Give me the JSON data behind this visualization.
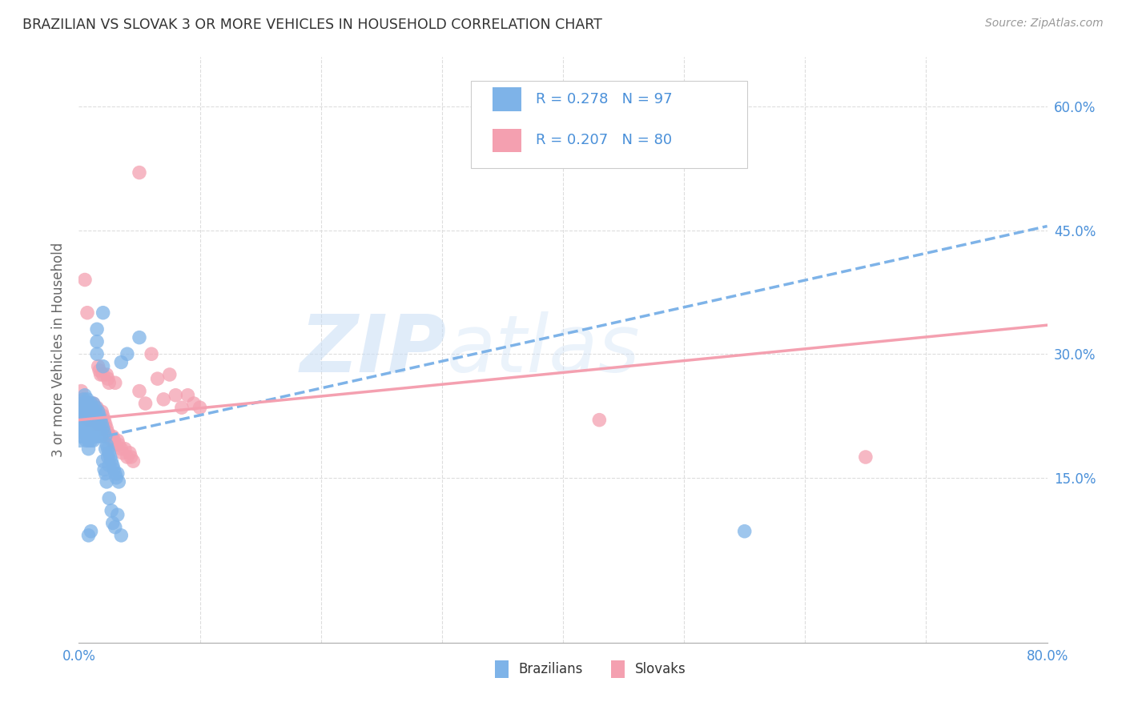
{
  "title": "BRAZILIAN VS SLOVAK 3 OR MORE VEHICLES IN HOUSEHOLD CORRELATION CHART",
  "source": "Source: ZipAtlas.com",
  "ylabel": "3 or more Vehicles in Household",
  "xlim": [
    0.0,
    0.8
  ],
  "ylim": [
    -0.05,
    0.66
  ],
  "xticks": [
    0.0,
    0.1,
    0.2,
    0.3,
    0.4,
    0.5,
    0.6,
    0.7,
    0.8
  ],
  "xticklabels": [
    "0.0%",
    "",
    "",
    "",
    "",
    "",
    "",
    "",
    "80.0%"
  ],
  "ytick_positions": [
    0.15,
    0.3,
    0.45,
    0.6
  ],
  "ytick_labels": [
    "15.0%",
    "30.0%",
    "45.0%",
    "60.0%"
  ],
  "brazilian_color": "#7EB3E8",
  "slovak_color": "#F4A0B0",
  "brazilian_R": 0.278,
  "brazilian_N": 97,
  "slovak_R": 0.207,
  "slovak_N": 80,
  "legend_label_1": "Brazilians",
  "legend_label_2": "Slovaks",
  "watermark_zip": "ZIP",
  "watermark_atlas": "atlas",
  "background_color": "#ffffff",
  "grid_color": "#dddddd",
  "axis_label_color": "#4a90d9",
  "title_color": "#333333",
  "brazilian_line": {
    "x0": 0.0,
    "y0": 0.193,
    "x1": 0.8,
    "y1": 0.455
  },
  "slovak_line": {
    "x0": 0.0,
    "y0": 0.22,
    "x1": 0.8,
    "y1": 0.335
  },
  "brazilian_points": [
    [
      0.001,
      0.22
    ],
    [
      0.002,
      0.235
    ],
    [
      0.003,
      0.24
    ],
    [
      0.003,
      0.225
    ],
    [
      0.004,
      0.245
    ],
    [
      0.004,
      0.23
    ],
    [
      0.004,
      0.215
    ],
    [
      0.005,
      0.25
    ],
    [
      0.005,
      0.235
    ],
    [
      0.005,
      0.22
    ],
    [
      0.005,
      0.205
    ],
    [
      0.006,
      0.24
    ],
    [
      0.006,
      0.225
    ],
    [
      0.006,
      0.21
    ],
    [
      0.007,
      0.245
    ],
    [
      0.007,
      0.23
    ],
    [
      0.007,
      0.215
    ],
    [
      0.007,
      0.2
    ],
    [
      0.008,
      0.24
    ],
    [
      0.008,
      0.225
    ],
    [
      0.008,
      0.21
    ],
    [
      0.008,
      0.195
    ],
    [
      0.009,
      0.235
    ],
    [
      0.009,
      0.22
    ],
    [
      0.009,
      0.205
    ],
    [
      0.01,
      0.24
    ],
    [
      0.01,
      0.225
    ],
    [
      0.01,
      0.21
    ],
    [
      0.01,
      0.195
    ],
    [
      0.011,
      0.235
    ],
    [
      0.011,
      0.22
    ],
    [
      0.011,
      0.205
    ],
    [
      0.012,
      0.24
    ],
    [
      0.012,
      0.225
    ],
    [
      0.012,
      0.21
    ],
    [
      0.012,
      0.195
    ],
    [
      0.013,
      0.23
    ],
    [
      0.013,
      0.215
    ],
    [
      0.013,
      0.2
    ],
    [
      0.014,
      0.235
    ],
    [
      0.014,
      0.22
    ],
    [
      0.014,
      0.205
    ],
    [
      0.015,
      0.33
    ],
    [
      0.015,
      0.315
    ],
    [
      0.015,
      0.3
    ],
    [
      0.016,
      0.23
    ],
    [
      0.016,
      0.215
    ],
    [
      0.016,
      0.2
    ],
    [
      0.017,
      0.225
    ],
    [
      0.017,
      0.21
    ],
    [
      0.018,
      0.22
    ],
    [
      0.018,
      0.205
    ],
    [
      0.019,
      0.215
    ],
    [
      0.019,
      0.2
    ],
    [
      0.02,
      0.285
    ],
    [
      0.02,
      0.21
    ],
    [
      0.021,
      0.205
    ],
    [
      0.022,
      0.2
    ],
    [
      0.022,
      0.185
    ],
    [
      0.023,
      0.19
    ],
    [
      0.024,
      0.185
    ],
    [
      0.024,
      0.175
    ],
    [
      0.025,
      0.18
    ],
    [
      0.025,
      0.165
    ],
    [
      0.026,
      0.175
    ],
    [
      0.027,
      0.17
    ],
    [
      0.028,
      0.165
    ],
    [
      0.029,
      0.16
    ],
    [
      0.03,
      0.155
    ],
    [
      0.031,
      0.15
    ],
    [
      0.032,
      0.155
    ],
    [
      0.033,
      0.145
    ],
    [
      0.02,
      0.17
    ],
    [
      0.021,
      0.16
    ],
    [
      0.022,
      0.155
    ],
    [
      0.023,
      0.145
    ],
    [
      0.025,
      0.125
    ],
    [
      0.027,
      0.11
    ],
    [
      0.028,
      0.095
    ],
    [
      0.03,
      0.09
    ],
    [
      0.032,
      0.105
    ],
    [
      0.035,
      0.08
    ],
    [
      0.008,
      0.08
    ],
    [
      0.01,
      0.085
    ],
    [
      0.02,
      0.35
    ],
    [
      0.035,
      0.29
    ],
    [
      0.04,
      0.3
    ],
    [
      0.05,
      0.32
    ],
    [
      0.55,
      0.085
    ],
    [
      0.008,
      0.185
    ],
    [
      0.006,
      0.195
    ],
    [
      0.004,
      0.2
    ],
    [
      0.003,
      0.21
    ],
    [
      0.002,
      0.205
    ],
    [
      0.001,
      0.195
    ],
    [
      0.001,
      0.21
    ],
    [
      0.001,
      0.225
    ]
  ],
  "slovak_points": [
    [
      0.001,
      0.23
    ],
    [
      0.002,
      0.24
    ],
    [
      0.003,
      0.225
    ],
    [
      0.004,
      0.235
    ],
    [
      0.005,
      0.39
    ],
    [
      0.005,
      0.24
    ],
    [
      0.005,
      0.225
    ],
    [
      0.006,
      0.24
    ],
    [
      0.006,
      0.225
    ],
    [
      0.007,
      0.35
    ],
    [
      0.007,
      0.235
    ],
    [
      0.007,
      0.22
    ],
    [
      0.008,
      0.24
    ],
    [
      0.008,
      0.225
    ],
    [
      0.009,
      0.235
    ],
    [
      0.009,
      0.22
    ],
    [
      0.01,
      0.24
    ],
    [
      0.01,
      0.225
    ],
    [
      0.011,
      0.235
    ],
    [
      0.011,
      0.22
    ],
    [
      0.012,
      0.24
    ],
    [
      0.012,
      0.225
    ],
    [
      0.013,
      0.235
    ],
    [
      0.013,
      0.22
    ],
    [
      0.014,
      0.23
    ],
    [
      0.014,
      0.215
    ],
    [
      0.015,
      0.235
    ],
    [
      0.015,
      0.22
    ],
    [
      0.016,
      0.285
    ],
    [
      0.016,
      0.23
    ],
    [
      0.016,
      0.215
    ],
    [
      0.017,
      0.28
    ],
    [
      0.017,
      0.225
    ],
    [
      0.018,
      0.275
    ],
    [
      0.018,
      0.22
    ],
    [
      0.019,
      0.23
    ],
    [
      0.019,
      0.215
    ],
    [
      0.02,
      0.275
    ],
    [
      0.02,
      0.225
    ],
    [
      0.021,
      0.22
    ],
    [
      0.022,
      0.215
    ],
    [
      0.022,
      0.2
    ],
    [
      0.023,
      0.275
    ],
    [
      0.023,
      0.21
    ],
    [
      0.024,
      0.27
    ],
    [
      0.024,
      0.205
    ],
    [
      0.025,
      0.265
    ],
    [
      0.025,
      0.2
    ],
    [
      0.026,
      0.2
    ],
    [
      0.027,
      0.195
    ],
    [
      0.028,
      0.2
    ],
    [
      0.029,
      0.195
    ],
    [
      0.03,
      0.265
    ],
    [
      0.03,
      0.19
    ],
    [
      0.032,
      0.195
    ],
    [
      0.033,
      0.19
    ],
    [
      0.035,
      0.185
    ],
    [
      0.036,
      0.18
    ],
    [
      0.038,
      0.185
    ],
    [
      0.04,
      0.175
    ],
    [
      0.042,
      0.18
    ],
    [
      0.043,
      0.175
    ],
    [
      0.045,
      0.17
    ],
    [
      0.05,
      0.255
    ],
    [
      0.055,
      0.24
    ],
    [
      0.06,
      0.3
    ],
    [
      0.065,
      0.27
    ],
    [
      0.07,
      0.245
    ],
    [
      0.075,
      0.275
    ],
    [
      0.08,
      0.25
    ],
    [
      0.085,
      0.235
    ],
    [
      0.09,
      0.25
    ],
    [
      0.095,
      0.24
    ],
    [
      0.1,
      0.235
    ],
    [
      0.43,
      0.22
    ],
    [
      0.65,
      0.175
    ],
    [
      0.05,
      0.52
    ],
    [
      0.003,
      0.235
    ],
    [
      0.004,
      0.245
    ],
    [
      0.002,
      0.255
    ]
  ]
}
